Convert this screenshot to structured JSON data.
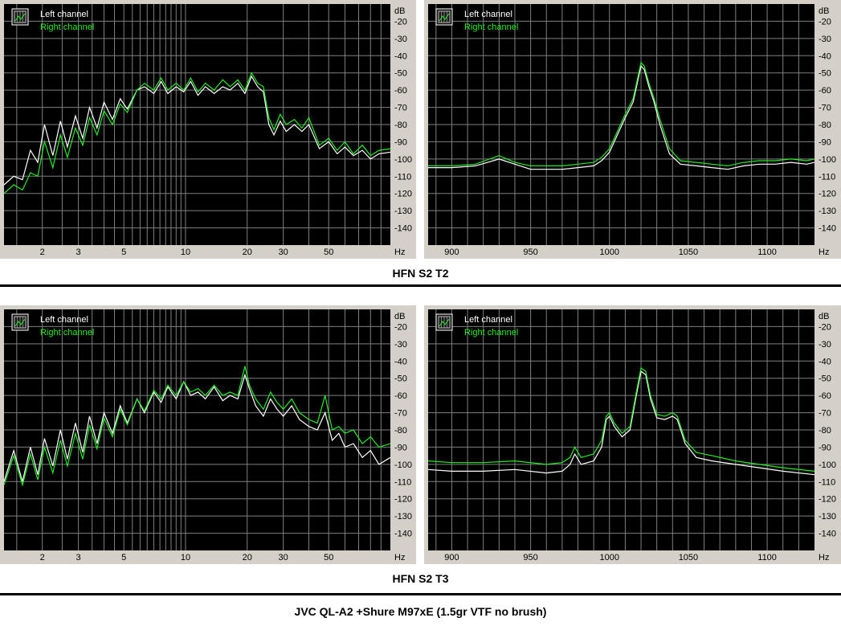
{
  "units": {
    "y": "dB",
    "x": "Hz"
  },
  "legend": {
    "left": "Left channel",
    "right": "Right channel"
  },
  "colors": {
    "background": "#000000",
    "grid": "#7f7f7f",
    "left": "#ffffff",
    "right": "#22ee22",
    "frame": "#d4d0c8"
  },
  "captions": {
    "top": "HFN S2 T2",
    "bottom": "HFN S2 T3"
  },
  "footer": "JVC QL-A2 +Shure M97xE (1.5gr VTF no brush)",
  "chart_data": [
    {
      "type": "line",
      "scale": "log",
      "xlim": [
        1.3,
        100
      ],
      "ylim": [
        -150,
        -10
      ],
      "xticks": [
        2,
        3,
        5,
        10,
        20,
        30,
        50
      ],
      "yticks": [
        -20,
        -30,
        -40,
        -50,
        -60,
        -70,
        -80,
        -90,
        -100,
        -110,
        -120,
        -130,
        -140
      ],
      "series": [
        {
          "name": "Left channel",
          "x": [
            1.3,
            1.45,
            1.6,
            1.75,
            1.9,
            2.05,
            2.25,
            2.45,
            2.65,
            2.9,
            3.15,
            3.4,
            3.7,
            4.0,
            4.4,
            4.8,
            5.2,
            5.8,
            6.3,
            7.0,
            7.6,
            8.2,
            9.0,
            9.8,
            10.6,
            11.5,
            12.5,
            13.8,
            15.2,
            16.5,
            18.0,
            19.5,
            21.0,
            22.5,
            24.0,
            25.5,
            27.0,
            29.0,
            31.0,
            34.0,
            37.0,
            40.0,
            45.0,
            50.0,
            55.0,
            60.0,
            66.0,
            73.0,
            80.0,
            88.0,
            100.0
          ],
          "y": [
            -115,
            -110,
            -112,
            -95,
            -102,
            -80,
            -98,
            -78,
            -93,
            -75,
            -88,
            -70,
            -82,
            -67,
            -77,
            -65,
            -71,
            -60,
            -58,
            -62,
            -55,
            -62,
            -58,
            -61,
            -55,
            -63,
            -58,
            -62,
            -58,
            -60,
            -56,
            -62,
            -52,
            -58,
            -61,
            -80,
            -86,
            -78,
            -84,
            -80,
            -84,
            -80,
            -94,
            -90,
            -97,
            -93,
            -98,
            -95,
            -100,
            -97,
            -96
          ]
        },
        {
          "name": "Right channel",
          "x": [
            1.3,
            1.45,
            1.6,
            1.75,
            1.9,
            2.05,
            2.25,
            2.45,
            2.65,
            2.9,
            3.15,
            3.4,
            3.7,
            4.0,
            4.4,
            4.8,
            5.2,
            5.8,
            6.3,
            7.0,
            7.6,
            8.2,
            9.0,
            9.8,
            10.6,
            11.5,
            12.5,
            13.8,
            15.2,
            16.5,
            18.0,
            19.5,
            21.0,
            22.5,
            24.0,
            25.5,
            27.0,
            29.0,
            31.0,
            34.0,
            37.0,
            40.0,
            45.0,
            50.0,
            55.0,
            60.0,
            66.0,
            73.0,
            80.0,
            88.0,
            100.0
          ],
          "y": [
            -120,
            -115,
            -118,
            -108,
            -110,
            -90,
            -105,
            -86,
            -99,
            -82,
            -92,
            -76,
            -86,
            -72,
            -80,
            -68,
            -73,
            -60,
            -56,
            -60,
            -53,
            -60,
            -56,
            -60,
            -53,
            -61,
            -56,
            -60,
            -54,
            -58,
            -54,
            -60,
            -50,
            -56,
            -58,
            -76,
            -83,
            -74,
            -80,
            -77,
            -82,
            -76,
            -92,
            -88,
            -95,
            -90,
            -97,
            -92,
            -98,
            -95,
            -94
          ]
        }
      ]
    },
    {
      "type": "line",
      "scale": "linear",
      "xlim": [
        885,
        1130
      ],
      "ylim": [
        -150,
        -10
      ],
      "xticks": [
        900,
        950,
        1000,
        1050,
        1100
      ],
      "yticks": [
        -20,
        -30,
        -40,
        -50,
        -60,
        -70,
        -80,
        -90,
        -100,
        -110,
        -120,
        -130,
        -140
      ],
      "series": [
        {
          "name": "Left channel",
          "x": [
            885,
            900,
            915,
            930,
            940,
            950,
            960,
            970,
            980,
            990,
            995,
            1000,
            1005,
            1010,
            1015,
            1020,
            1022,
            1025,
            1028,
            1032,
            1038,
            1045,
            1055,
            1065,
            1075,
            1085,
            1095,
            1105,
            1115,
            1125,
            1130
          ],
          "y": [
            -105,
            -105,
            -104,
            -100,
            -103,
            -106,
            -106,
            -106,
            -105,
            -104,
            -101,
            -96,
            -86,
            -76,
            -67,
            -46,
            -48,
            -58,
            -66,
            -80,
            -97,
            -103,
            -104,
            -105,
            -106,
            -104,
            -103,
            -103,
            -102,
            -103,
            -102
          ]
        },
        {
          "name": "Right channel",
          "x": [
            885,
            900,
            915,
            930,
            940,
            950,
            960,
            970,
            980,
            990,
            995,
            1000,
            1005,
            1010,
            1015,
            1020,
            1022,
            1025,
            1028,
            1032,
            1038,
            1045,
            1055,
            1065,
            1075,
            1085,
            1095,
            1105,
            1115,
            1125,
            1130
          ],
          "y": [
            -104,
            -104,
            -103,
            -98,
            -102,
            -104,
            -104,
            -104,
            -103,
            -102,
            -99,
            -94,
            -84,
            -74,
            -65,
            -44,
            -46,
            -56,
            -64,
            -77,
            -94,
            -101,
            -102,
            -103,
            -104,
            -102,
            -101,
            -101,
            -100,
            -101,
            -100
          ]
        }
      ]
    },
    {
      "type": "line",
      "scale": "log",
      "xlim": [
        1.3,
        100
      ],
      "ylim": [
        -150,
        -10
      ],
      "xticks": [
        2,
        3,
        5,
        10,
        20,
        30,
        50
      ],
      "yticks": [
        -20,
        -30,
        -40,
        -50,
        -60,
        -70,
        -80,
        -90,
        -100,
        -110,
        -120,
        -130,
        -140
      ],
      "series": [
        {
          "name": "Left channel",
          "x": [
            1.3,
            1.45,
            1.6,
            1.75,
            1.9,
            2.05,
            2.25,
            2.45,
            2.65,
            2.9,
            3.15,
            3.4,
            3.7,
            4.0,
            4.4,
            4.8,
            5.2,
            5.8,
            6.3,
            7.0,
            7.6,
            8.2,
            9.0,
            9.8,
            10.6,
            11.5,
            12.5,
            13.8,
            15.2,
            16.5,
            18.0,
            19.5,
            20.5,
            22.0,
            24.0,
            26.0,
            28.0,
            30.0,
            33.0,
            36.0,
            40.0,
            44.0,
            48.0,
            52.0,
            56.0,
            60.0,
            66.0,
            73.0,
            80.0,
            88.0,
            100.0
          ],
          "y": [
            -110,
            -92,
            -110,
            -90,
            -106,
            -85,
            -101,
            -80,
            -97,
            -76,
            -93,
            -72,
            -88,
            -70,
            -82,
            -66,
            -76,
            -62,
            -70,
            -58,
            -64,
            -55,
            -62,
            -52,
            -60,
            -58,
            -62,
            -55,
            -63,
            -60,
            -62,
            -48,
            -56,
            -66,
            -72,
            -62,
            -68,
            -72,
            -66,
            -74,
            -78,
            -80,
            -70,
            -86,
            -82,
            -90,
            -88,
            -96,
            -92,
            -100,
            -96
          ]
        },
        {
          "name": "Right channel",
          "x": [
            1.3,
            1.45,
            1.6,
            1.75,
            1.9,
            2.05,
            2.25,
            2.45,
            2.65,
            2.9,
            3.15,
            3.4,
            3.7,
            4.0,
            4.4,
            4.8,
            5.2,
            5.8,
            6.3,
            7.0,
            7.6,
            8.2,
            9.0,
            9.8,
            10.6,
            11.5,
            12.5,
            13.8,
            15.2,
            16.5,
            18.0,
            19.5,
            20.5,
            22.0,
            24.0,
            26.0,
            28.0,
            30.0,
            33.0,
            36.0,
            40.0,
            44.0,
            48.0,
            52.0,
            56.0,
            60.0,
            66.0,
            73.0,
            80.0,
            88.0,
            100.0
          ],
          "y": [
            -112,
            -95,
            -112,
            -94,
            -109,
            -90,
            -105,
            -86,
            -101,
            -82,
            -97,
            -77,
            -91,
            -73,
            -84,
            -68,
            -77,
            -62,
            -69,
            -57,
            -62,
            -54,
            -60,
            -52,
            -58,
            -56,
            -60,
            -54,
            -60,
            -58,
            -60,
            -43,
            -54,
            -62,
            -68,
            -58,
            -64,
            -68,
            -62,
            -70,
            -74,
            -76,
            -60,
            -80,
            -78,
            -82,
            -80,
            -88,
            -84,
            -90,
            -88
          ]
        }
      ]
    },
    {
      "type": "line",
      "scale": "linear",
      "xlim": [
        885,
        1130
      ],
      "ylim": [
        -150,
        -10
      ],
      "xticks": [
        900,
        950,
        1000,
        1050,
        1100
      ],
      "yticks": [
        -20,
        -30,
        -40,
        -50,
        -60,
        -70,
        -80,
        -90,
        -100,
        -110,
        -120,
        -130,
        -140
      ],
      "series": [
        {
          "name": "Left channel",
          "x": [
            885,
            900,
            920,
            940,
            960,
            970,
            975,
            978,
            982,
            990,
            995,
            998,
            1000,
            1003,
            1008,
            1013,
            1017,
            1020,
            1023,
            1026,
            1030,
            1035,
            1040,
            1043,
            1048,
            1055,
            1065,
            1080,
            1095,
            1110,
            1130
          ],
          "y": [
            -103,
            -104,
            -104,
            -103,
            -105,
            -104,
            -100,
            -94,
            -100,
            -98,
            -90,
            -74,
            -72,
            -78,
            -84,
            -80,
            -60,
            -46,
            -48,
            -62,
            -73,
            -74,
            -72,
            -74,
            -88,
            -96,
            -98,
            -100,
            -102,
            -104,
            -106
          ]
        },
        {
          "name": "Right channel",
          "x": [
            885,
            900,
            920,
            940,
            960,
            970,
            975,
            978,
            982,
            990,
            995,
            998,
            1000,
            1003,
            1008,
            1013,
            1017,
            1020,
            1023,
            1026,
            1030,
            1035,
            1040,
            1043,
            1048,
            1055,
            1065,
            1080,
            1095,
            1110,
            1130
          ],
          "y": [
            -98,
            -99,
            -99,
            -98,
            -100,
            -99,
            -96,
            -90,
            -96,
            -94,
            -86,
            -72,
            -70,
            -76,
            -82,
            -78,
            -58,
            -44,
            -46,
            -60,
            -71,
            -72,
            -70,
            -72,
            -86,
            -93,
            -95,
            -98,
            -100,
            -102,
            -104
          ]
        }
      ]
    }
  ]
}
